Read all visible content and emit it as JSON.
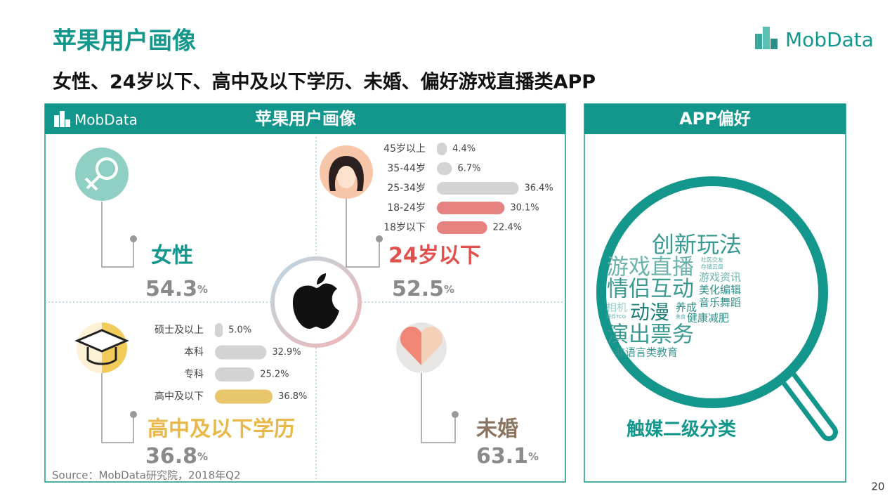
{
  "header": {
    "title": "苹果用户画像",
    "subtitle": "女性、24岁以下、高中及以下学历、未婚、偏好游戏直播类APP",
    "logo": "MobData"
  },
  "profile_panel": {
    "logo": "MobData",
    "title": "苹果用户画像",
    "gender": {
      "label": "女性",
      "value": 54.3,
      "unit": "%"
    },
    "age": {
      "label": "24岁以下",
      "value": 52.5,
      "unit": "%",
      "categories": [
        "45岁以上",
        "35-44岁",
        "25-34岁",
        "18-24岁",
        "18岁以下"
      ],
      "values": [
        4.4,
        6.7,
        36.4,
        30.1,
        22.4
      ],
      "value_labels": [
        "4.4%",
        "6.7%",
        "36.4%",
        "30.1%",
        "22.4%"
      ],
      "colors": [
        "#d3d3d3",
        "#d3d3d3",
        "#d3d3d3",
        "#e5817f",
        "#e5817f"
      ]
    },
    "education": {
      "label": "高中及以下学历",
      "value": 36.8,
      "unit": "%",
      "categories": [
        "硕士及以上",
        "本科",
        "专科",
        "高中及以下"
      ],
      "values": [
        5.0,
        32.9,
        25.2,
        36.8
      ],
      "value_labels": [
        "5.0%",
        "32.9%",
        "25.2%",
        "36.8%"
      ],
      "colors": [
        "#d3d3d3",
        "#d3d3d3",
        "#d3d3d3",
        "#e8c66c"
      ]
    },
    "marital": {
      "label": "未婚",
      "value": 63.1,
      "unit": "%"
    }
  },
  "app_panel": {
    "title": "APP偏好",
    "caption": "触媒二级分类",
    "words": [
      "创新玩法",
      "游戏直播",
      "社区交友",
      "存储云盘",
      "游戏资讯",
      "情侣互动",
      "美化编辑",
      "相机",
      "动漫",
      "养成",
      "音乐舞蹈",
      "硬件TCG",
      "美食",
      "健康减肥",
      "演出票务",
      "非语言类教育"
    ]
  },
  "source": "Source：MobData研究院，2018年Q2",
  "page_number": "20"
}
